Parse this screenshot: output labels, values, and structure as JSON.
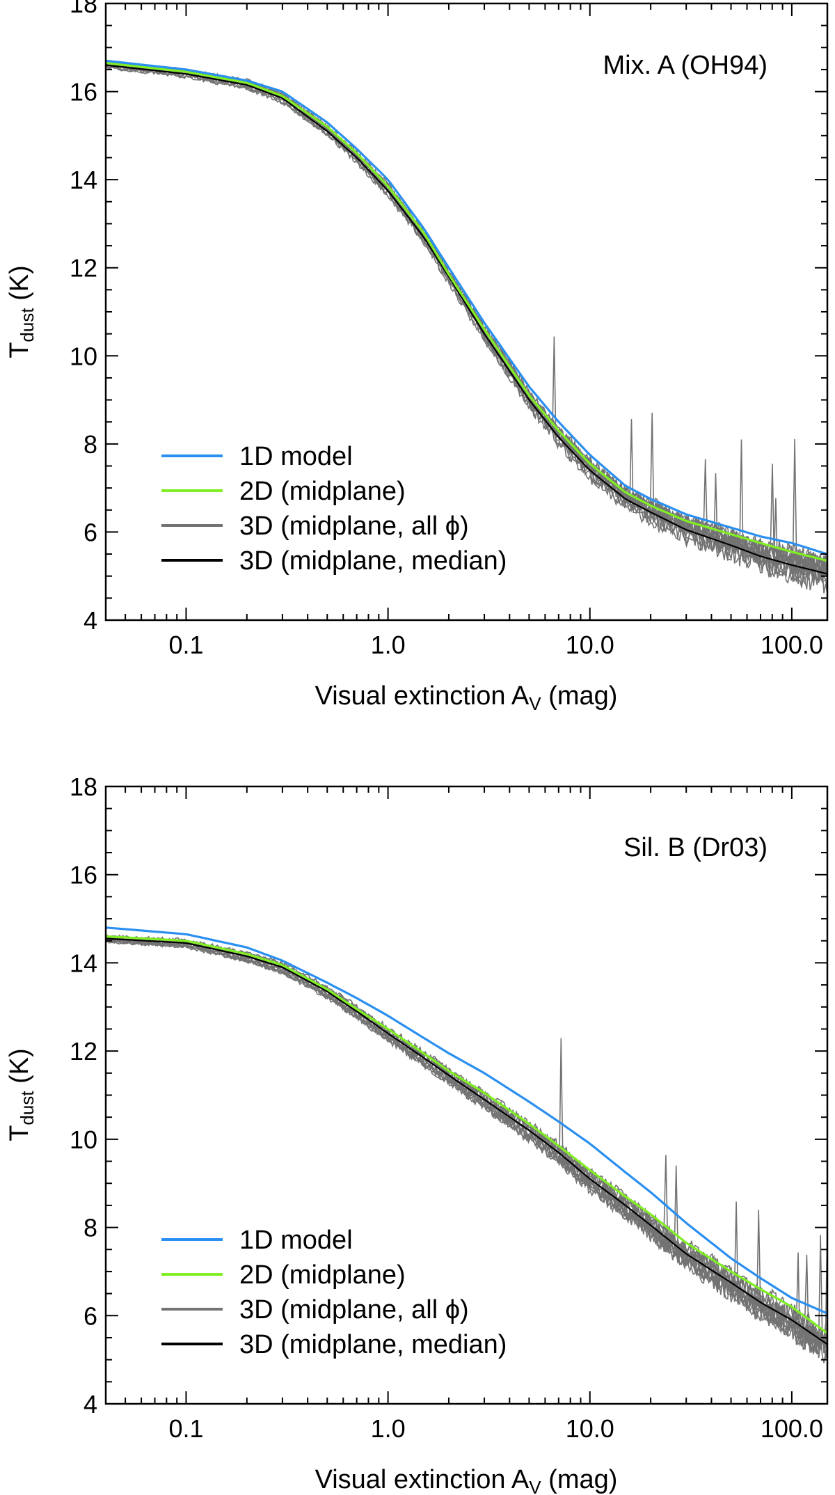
{
  "chart_data": [
    {
      "type": "line",
      "title": "Mix. A (OH94)",
      "xlabel": "Visual extinction A",
      "xlabel_sub": "V",
      "xlabel_suffix": " (mag)",
      "ylabel": "T",
      "ylabel_sub": "dust",
      "ylabel_suffix": " (K)",
      "xscale": "log",
      "xlim": [
        0.04,
        150
      ],
      "ylim": [
        4,
        18
      ],
      "xticks": [
        "0.1",
        "1.0",
        "10.0",
        "100.0"
      ],
      "yticks": [
        "4",
        "6",
        "8",
        "10",
        "12",
        "14",
        "16",
        "18"
      ],
      "legend_position": "lower-left",
      "legend": [
        {
          "label": "1D model",
          "color": "#2a8ff0"
        },
        {
          "label": "2D (midplane)",
          "color": "#80ee22"
        },
        {
          "label": "3D (midplane, all ϕ)",
          "color": "#737373"
        },
        {
          "label": "3D (midplane, median)",
          "color": "#000000"
        }
      ],
      "series": [
        {
          "name": "1D model",
          "color": "#2a8ff0",
          "x": [
            0.04,
            0.1,
            0.2,
            0.3,
            0.5,
            0.7,
            1.0,
            1.5,
            2.0,
            3.0,
            5.0,
            7.0,
            10,
            15,
            20,
            30,
            50,
            70,
            100,
            150
          ],
          "y": [
            16.7,
            16.5,
            16.25,
            16.0,
            15.3,
            14.7,
            14.0,
            12.9,
            12.0,
            10.75,
            9.3,
            8.5,
            7.75,
            7.05,
            6.75,
            6.4,
            6.1,
            5.9,
            5.75,
            5.5
          ]
        },
        {
          "name": "2D (midplane)",
          "color": "#80ee22",
          "x": [
            0.04,
            0.1,
            0.2,
            0.3,
            0.5,
            0.7,
            1.0,
            1.5,
            2.0,
            3.0,
            5.0,
            7.0,
            10,
            15,
            20,
            30,
            50,
            70,
            100,
            150
          ],
          "y": [
            16.65,
            16.45,
            16.2,
            15.9,
            15.2,
            14.6,
            13.85,
            12.8,
            11.85,
            10.6,
            9.1,
            8.3,
            7.55,
            6.9,
            6.6,
            6.25,
            5.95,
            5.75,
            5.55,
            5.35
          ]
        },
        {
          "name": "3D (midplane, median)",
          "color": "#000000",
          "x": [
            0.04,
            0.1,
            0.2,
            0.3,
            0.5,
            0.7,
            1.0,
            1.5,
            2.0,
            3.0,
            5.0,
            7.0,
            10,
            15,
            20,
            30,
            50,
            70,
            100,
            150
          ],
          "y": [
            16.6,
            16.4,
            16.15,
            15.85,
            15.1,
            14.5,
            13.75,
            12.7,
            11.8,
            10.5,
            9.0,
            8.15,
            7.4,
            6.75,
            6.45,
            6.05,
            5.7,
            5.45,
            5.25,
            5.05
          ]
        }
      ]
    },
    {
      "type": "line",
      "title": "Sil. B (Dr03)",
      "xlabel": "Visual extinction A",
      "xlabel_sub": "V",
      "xlabel_suffix": " (mag)",
      "ylabel": "T",
      "ylabel_sub": "dust",
      "ylabel_suffix": " (K)",
      "xscale": "log",
      "xlim": [
        0.04,
        150
      ],
      "ylim": [
        4,
        18
      ],
      "xticks": [
        "0.1",
        "1.0",
        "10.0",
        "100.0"
      ],
      "yticks": [
        "4",
        "6",
        "8",
        "10",
        "12",
        "14",
        "16",
        "18"
      ],
      "legend_position": "lower-left",
      "legend": [
        {
          "label": "1D model",
          "color": "#2a8ff0"
        },
        {
          "label": "2D (midplane)",
          "color": "#80ee22"
        },
        {
          "label": "3D (midplane, all ϕ)",
          "color": "#737373"
        },
        {
          "label": "3D (midplane, median)",
          "color": "#000000"
        }
      ],
      "series": [
        {
          "name": "1D model",
          "color": "#2a8ff0",
          "x": [
            0.04,
            0.1,
            0.2,
            0.3,
            0.5,
            0.7,
            1.0,
            1.5,
            2.0,
            3.0,
            5.0,
            7.0,
            10,
            15,
            20,
            30,
            50,
            70,
            100,
            150
          ],
          "y": [
            14.8,
            14.65,
            14.35,
            14.05,
            13.55,
            13.2,
            12.8,
            12.3,
            11.95,
            11.5,
            10.85,
            10.4,
            9.9,
            9.25,
            8.8,
            8.1,
            7.3,
            6.85,
            6.4,
            6.05
          ]
        },
        {
          "name": "2D (midplane)",
          "color": "#80ee22",
          "x": [
            0.04,
            0.1,
            0.2,
            0.3,
            0.5,
            0.7,
            1.0,
            1.5,
            2.0,
            3.0,
            5.0,
            7.0,
            10,
            15,
            20,
            30,
            50,
            70,
            100,
            150
          ],
          "y": [
            14.6,
            14.5,
            14.2,
            13.95,
            13.4,
            12.95,
            12.5,
            11.95,
            11.55,
            11.05,
            10.35,
            9.85,
            9.3,
            8.7,
            8.3,
            7.65,
            7.0,
            6.6,
            6.2,
            5.6
          ]
        },
        {
          "name": "3D (midplane, median)",
          "color": "#000000",
          "x": [
            0.04,
            0.1,
            0.2,
            0.3,
            0.5,
            0.7,
            1.0,
            1.5,
            2.0,
            3.0,
            5.0,
            7.0,
            10,
            15,
            20,
            30,
            50,
            70,
            100,
            150
          ],
          "y": [
            14.55,
            14.45,
            14.15,
            13.9,
            13.35,
            12.9,
            12.4,
            11.85,
            11.45,
            10.9,
            10.2,
            9.7,
            9.1,
            8.5,
            8.05,
            7.4,
            6.75,
            6.3,
            5.9,
            5.35
          ]
        }
      ]
    }
  ]
}
